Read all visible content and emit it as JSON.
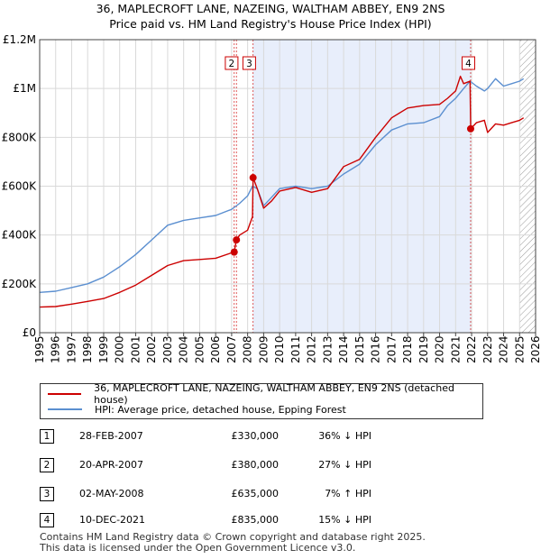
{
  "header": {
    "title_line1": "36, MAPLECROFT LANE, NAZEING, WALTHAM ABBEY, EN9 2NS",
    "title_line2": "Price paid vs. HM Land Registry's House Price Index (HPI)"
  },
  "colors": {
    "property_line": "#cc0000",
    "hpi_line": "#5b8fd0",
    "shade": "#e8eefb",
    "marker_border": "#cc0000"
  },
  "chart_data": {
    "type": "line",
    "title": "36, MAPLECROFT LANE, NAZEING, WALTHAM ABBEY, EN9 2NS",
    "subtitle": "Price paid vs. HM Land Registry's House Price Index (HPI)",
    "xlim": [
      1995,
      2026
    ],
    "ylim": [
      0,
      1200000
    ],
    "x_ticks": [
      1995,
      1996,
      1997,
      1998,
      1999,
      2000,
      2001,
      2002,
      2003,
      2004,
      2005,
      2006,
      2007,
      2008,
      2009,
      2010,
      2011,
      2012,
      2013,
      2014,
      2015,
      2016,
      2017,
      2018,
      2019,
      2020,
      2021,
      2022,
      2023,
      2024,
      2025,
      2026
    ],
    "y_ticks": [
      {
        "value": 0,
        "label": "£0"
      },
      {
        "value": 200000,
        "label": "£200K"
      },
      {
        "value": 400000,
        "label": "£400K"
      },
      {
        "value": 600000,
        "label": "£600K"
      },
      {
        "value": 800000,
        "label": "£800K"
      },
      {
        "value": 1000000,
        "label": "£1M"
      },
      {
        "value": 1200000,
        "label": "£1.2M"
      }
    ],
    "grid": true,
    "shaded_span": [
      2008.33,
      2021.94
    ],
    "hatched_after": 2025.0,
    "series": [
      {
        "name": "36, MAPLECROFT LANE, NAZEING, WALTHAM ABBEY, EN9 2NS (detached house)",
        "x": [
          1995.0,
          1996.0,
          1997.0,
          1998.0,
          1999.0,
          2000.0,
          2001.0,
          2002.0,
          2003.0,
          2004.0,
          2005.0,
          2006.0,
          2006.9,
          2007.16,
          2007.3,
          2007.5,
          2008.0,
          2008.3,
          2008.34,
          2008.6,
          2009.0,
          2009.5,
          2010.0,
          2011.0,
          2012.0,
          2013.0,
          2014.0,
          2015.0,
          2016.0,
          2017.0,
          2018.0,
          2019.0,
          2020.0,
          2020.5,
          2021.0,
          2021.3,
          2021.5,
          2021.9,
          2021.94,
          2022.3,
          2022.8,
          2023.0,
          2023.5,
          2024.0,
          2024.5,
          2025.0,
          2025.25
        ],
        "y": [
          105000,
          107000,
          117000,
          128000,
          140000,
          165000,
          195000,
          235000,
          275000,
          295000,
          300000,
          305000,
          325000,
          330000,
          380000,
          400000,
          420000,
          475000,
          635000,
          590000,
          510000,
          540000,
          580000,
          595000,
          575000,
          590000,
          680000,
          710000,
          800000,
          880000,
          920000,
          930000,
          935000,
          960000,
          990000,
          1050000,
          1020000,
          1030000,
          835000,
          860000,
          870000,
          820000,
          855000,
          850000,
          860000,
          870000,
          880000
        ]
      },
      {
        "name": "HPI: Average price, detached house, Epping Forest",
        "x": [
          1995.0,
          1996.0,
          1997.0,
          1998.0,
          1999.0,
          2000.0,
          2001.0,
          2002.0,
          2003.0,
          2004.0,
          2005.0,
          2006.0,
          2007.0,
          2007.5,
          2008.0,
          2008.3,
          2008.6,
          2009.0,
          2009.5,
          2010.0,
          2011.0,
          2012.0,
          2013.0,
          2014.0,
          2015.0,
          2016.0,
          2017.0,
          2018.0,
          2019.0,
          2020.0,
          2020.5,
          2021.0,
          2021.5,
          2021.9,
          2022.3,
          2022.8,
          2023.0,
          2023.5,
          2024.0,
          2024.5,
          2025.0,
          2025.25
        ],
        "y": [
          165000,
          170000,
          185000,
          200000,
          228000,
          270000,
          320000,
          380000,
          440000,
          460000,
          470000,
          480000,
          505000,
          530000,
          560000,
          600000,
          590000,
          520000,
          555000,
          590000,
          600000,
          590000,
          600000,
          650000,
          690000,
          770000,
          830000,
          855000,
          860000,
          885000,
          930000,
          960000,
          1000000,
          1030000,
          1010000,
          990000,
          1000000,
          1040000,
          1010000,
          1020000,
          1030000,
          1040000
        ]
      }
    ],
    "sale_markers": [
      {
        "id": "1",
        "x": 2007.16,
        "y": 330000
      },
      {
        "id": "2",
        "x": 2007.3,
        "y": 380000
      },
      {
        "id": "3",
        "x": 2008.34,
        "y": 635000
      },
      {
        "id": "4",
        "x": 2021.94,
        "y": 835000
      }
    ],
    "box_labels": [
      {
        "id": "2",
        "x": 2007.0
      },
      {
        "id": "3",
        "x": 2008.1
      },
      {
        "id": "4",
        "x": 2021.8
      }
    ]
  },
  "legend": {
    "property_label": "36, MAPLECROFT LANE, NAZEING, WALTHAM ABBEY, EN9 2NS (detached house)",
    "hpi_label": "HPI: Average price, detached house, Epping Forest"
  },
  "transactions": [
    {
      "num": "1",
      "date": "28-FEB-2007",
      "price": "£330,000",
      "hpi": "36% ↓ HPI"
    },
    {
      "num": "2",
      "date": "20-APR-2007",
      "price": "£380,000",
      "hpi": "27% ↓ HPI"
    },
    {
      "num": "3",
      "date": "02-MAY-2008",
      "price": "£635,000",
      "hpi": "7% ↑ HPI"
    },
    {
      "num": "4",
      "date": "10-DEC-2021",
      "price": "£835,000",
      "hpi": "15% ↓ HPI"
    }
  ],
  "footer": {
    "line1": "Contains HM Land Registry data © Crown copyright and database right 2025.",
    "line2": "This data is licensed under the Open Government Licence v3.0."
  }
}
